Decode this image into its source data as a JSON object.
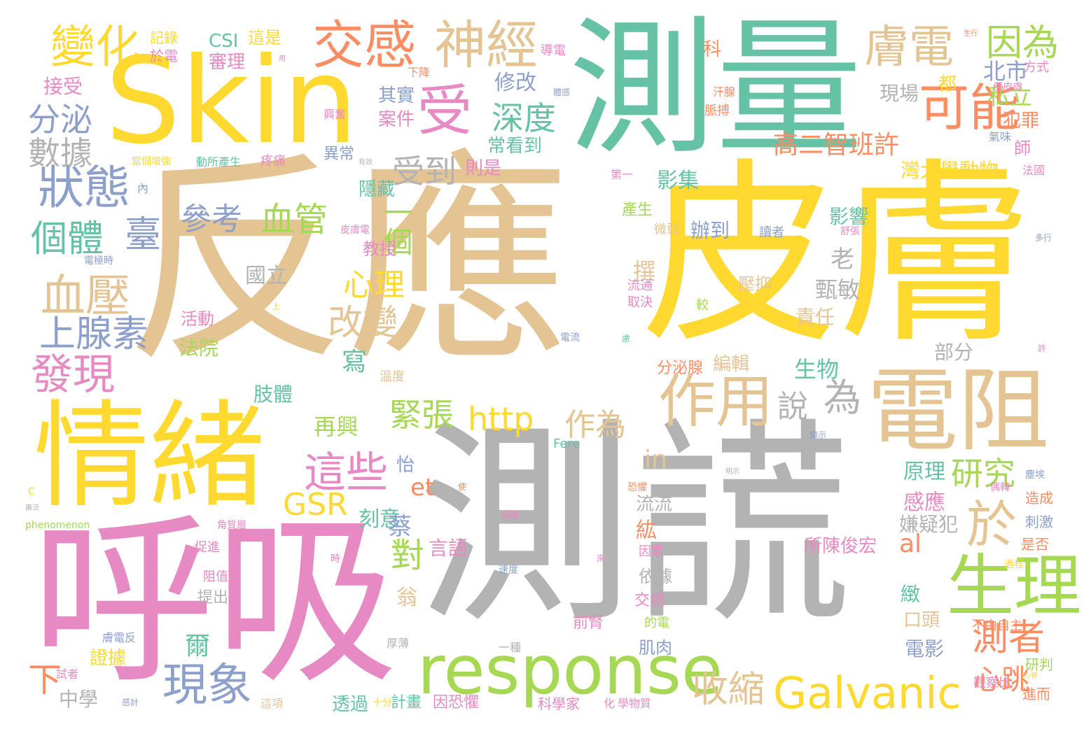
{
  "palette": {
    "teal": "#66c2a5",
    "orange": "#fc8d62",
    "blue": "#8da0cb",
    "pink": "#e78ac3",
    "green": "#a6d854",
    "yellow": "#ffd92f",
    "tan": "#e5c494",
    "gray": "#b3b3b3"
  },
  "words": [
    {
      "text": "反應",
      "color": "tan"
    },
    {
      "text": "測量",
      "color": "teal"
    },
    {
      "text": "皮膚",
      "color": "yellow"
    },
    {
      "text": "測謊",
      "color": "gray"
    },
    {
      "text": "呼吸",
      "color": "pink"
    },
    {
      "text": "Skin",
      "color": "yellow"
    },
    {
      "text": "情緒",
      "color": "yellow"
    },
    {
      "text": "電阻",
      "color": "tan"
    },
    {
      "text": "response",
      "color": "green"
    },
    {
      "text": "生理",
      "color": "green"
    },
    {
      "text": "Galvanic",
      "color": "yellow"
    },
    {
      "text": "作用",
      "color": "tan"
    },
    {
      "text": "交感",
      "color": "orange"
    },
    {
      "text": "神經",
      "color": "tan"
    },
    {
      "text": "變化",
      "color": "yellow"
    },
    {
      "text": "膚電",
      "color": "tan"
    },
    {
      "text": "受",
      "color": "pink"
    },
    {
      "text": "可能",
      "color": "orange"
    },
    {
      "text": "狀態",
      "color": "blue"
    },
    {
      "text": "現象",
      "color": "blue"
    },
    {
      "text": "這些",
      "color": "pink"
    },
    {
      "text": "血壓",
      "color": "tan"
    },
    {
      "text": "上腺素",
      "color": "blue"
    },
    {
      "text": "發現",
      "color": "pink"
    },
    {
      "text": "個體",
      "color": "teal"
    },
    {
      "text": "分泌",
      "color": "blue"
    },
    {
      "text": "數據",
      "color": "gray"
    },
    {
      "text": "因為",
      "color": "green"
    },
    {
      "text": "深度",
      "color": "teal"
    },
    {
      "text": "受到",
      "color": "gray"
    },
    {
      "text": "緊張",
      "color": "green"
    },
    {
      "text": "血管",
      "color": "green"
    },
    {
      "text": "參考",
      "color": "blue"
    },
    {
      "text": "臺",
      "color": "blue"
    },
    {
      "text": "改變",
      "color": "tan"
    },
    {
      "text": "心理",
      "color": "yellow"
    },
    {
      "text": "收縮",
      "color": "tan"
    },
    {
      "text": "測者",
      "color": "orange"
    },
    {
      "text": "於",
      "color": "tan"
    },
    {
      "text": "研究",
      "color": "green"
    },
    {
      "text": "http",
      "color": "yellow"
    },
    {
      "text": "GSR",
      "color": "yellow"
    },
    {
      "text": "作為",
      "color": "tan"
    },
    {
      "text": "說",
      "color": "gray"
    },
    {
      "text": "為",
      "color": "gray"
    },
    {
      "text": "高二智班許",
      "color": "orange"
    },
    {
      "text": "灣大學動物",
      "color": "yellow"
    },
    {
      "text": "北市",
      "color": "blue"
    },
    {
      "text": "私立",
      "color": "green"
    },
    {
      "text": "犯罪",
      "color": "orange"
    },
    {
      "text": "現場",
      "color": "gray"
    },
    {
      "text": "一個",
      "color": "green"
    },
    {
      "text": "影集",
      "color": "teal"
    },
    {
      "text": "辦到",
      "color": "blue"
    },
    {
      "text": "生物",
      "color": "teal"
    },
    {
      "text": "部分",
      "color": "gray"
    },
    {
      "text": "原理",
      "color": "teal"
    },
    {
      "text": "感應",
      "color": "pink"
    },
    {
      "text": "心跳",
      "color": "orange"
    },
    {
      "text": "電影",
      "color": "blue"
    },
    {
      "text": "對",
      "color": "green"
    },
    {
      "text": "et",
      "color": "orange"
    },
    {
      "text": "al",
      "color": "orange"
    },
    {
      "text": "in",
      "color": "tan"
    },
    {
      "text": "修改",
      "color": "blue"
    },
    {
      "text": "其實",
      "color": "blue"
    },
    {
      "text": "案件",
      "color": "pink"
    },
    {
      "text": "常看到",
      "color": "teal"
    },
    {
      "text": "則是",
      "color": "pink"
    },
    {
      "text": "CSI",
      "color": "teal"
    },
    {
      "text": "審理",
      "color": "pink"
    },
    {
      "text": "這是",
      "color": "yellow"
    },
    {
      "text": "記錄",
      "color": "yellow"
    },
    {
      "text": "於電",
      "color": "pink"
    },
    {
      "text": "接受",
      "color": "pink"
    },
    {
      "text": "國立",
      "color": "gray"
    },
    {
      "text": "甄敏",
      "color": "gray"
    },
    {
      "text": "老",
      "color": "gray"
    },
    {
      "text": "撰",
      "color": "tan"
    },
    {
      "text": "影響",
      "color": "teal"
    },
    {
      "text": "責任",
      "color": "tan"
    },
    {
      "text": "壓抑",
      "color": "tan"
    },
    {
      "text": "所陳俊宏",
      "color": "pink"
    },
    {
      "text": "嫌疑犯",
      "color": "gray"
    },
    {
      "text": "中學",
      "color": "gray"
    },
    {
      "text": "下",
      "color": "orange"
    },
    {
      "text": "證據",
      "color": "yellow"
    },
    {
      "text": "爾",
      "color": "teal"
    },
    {
      "text": "透過",
      "color": "teal"
    },
    {
      "text": "言語",
      "color": "pink"
    },
    {
      "text": "刻意",
      "color": "teal"
    },
    {
      "text": "蔡",
      "color": "blue"
    },
    {
      "text": "翁",
      "color": "tan"
    },
    {
      "text": "流流",
      "color": "gray"
    },
    {
      "text": "紘",
      "color": "orange"
    },
    {
      "text": "依據",
      "color": "gray"
    },
    {
      "text": "再興",
      "color": "green"
    },
    {
      "text": "怡",
      "color": "blue"
    },
    {
      "text": "隱藏",
      "color": "teal"
    },
    {
      "text": "教授",
      "color": "pink"
    },
    {
      "text": "寫",
      "color": "teal"
    },
    {
      "text": "編輯",
      "color": "tan"
    },
    {
      "text": "肢體",
      "color": "teal"
    },
    {
      "text": "法院",
      "color": "green"
    },
    {
      "text": "活動",
      "color": "pink"
    },
    {
      "text": "分泌腺",
      "color": "orange"
    },
    {
      "text": "科",
      "color": "orange"
    },
    {
      "text": "都",
      "color": "yellow"
    },
    {
      "text": "師",
      "color": "pink"
    },
    {
      "text": "口頭",
      "color": "tan"
    },
    {
      "text": "緻",
      "color": "teal"
    },
    {
      "text": "不由自主",
      "color": "orange"
    },
    {
      "text": "研判",
      "color": "green"
    },
    {
      "text": "觀察比",
      "color": "pink"
    },
    {
      "text": "造成",
      "color": "orange"
    },
    {
      "text": "刺激",
      "color": "blue"
    },
    {
      "text": "是否",
      "color": "orange"
    },
    {
      "text": "進而",
      "color": "orange"
    },
    {
      "text": "方式",
      "color": "pink"
    },
    {
      "text": "法國",
      "color": "pink"
    },
    {
      "text": "產生",
      "color": "green"
    },
    {
      "text": "肌肉",
      "color": "blue"
    },
    {
      "text": "計畫",
      "color": "teal"
    },
    {
      "text": "因恐懼",
      "color": "pink"
    },
    {
      "text": "前腎",
      "color": "pink"
    },
    {
      "text": "交感",
      "color": "pink"
    },
    {
      "text": "科學家",
      "color": "pink"
    },
    {
      "text": "提出",
      "color": "gray"
    },
    {
      "text": "阻值",
      "color": "pink"
    },
    {
      "text": "促進",
      "color": "pink"
    },
    {
      "text": "Fere",
      "color": "teal"
    },
    {
      "text": "phenomenon",
      "color": "green"
    },
    {
      "text": "異常",
      "color": "blue"
    },
    {
      "text": "興奮",
      "color": "pink"
    },
    {
      "text": "溫度",
      "color": "tan"
    },
    {
      "text": "一種",
      "color": "gray"
    },
    {
      "text": "導電",
      "color": "pink"
    },
    {
      "text": "第一",
      "color": "pink"
    },
    {
      "text": "疼痛",
      "color": "pink"
    },
    {
      "text": "動所產生",
      "color": "teal"
    },
    {
      "text": "當個增強",
      "color": "yellow"
    },
    {
      "text": "試者",
      "color": "pink"
    },
    {
      "text": "膚電反",
      "color": "blue"
    },
    {
      "text": "這項",
      "color": "tan"
    },
    {
      "text": "十分",
      "color": "yellow"
    },
    {
      "text": "微弱",
      "color": "tan"
    },
    {
      "text": "流通",
      "color": "pink"
    },
    {
      "text": "取決",
      "color": "pink"
    },
    {
      "text": "較",
      "color": "green"
    },
    {
      "text": "因素",
      "color": "pink"
    },
    {
      "text": "的電",
      "color": "green"
    },
    {
      "text": "厚薄",
      "color": "gray"
    },
    {
      "text": "下降",
      "color": "orange"
    },
    {
      "text": "汗腺",
      "color": "orange"
    },
    {
      "text": "脈搏",
      "color": "orange"
    },
    {
      "text": "氣味",
      "color": "blue"
    },
    {
      "text": "便皮膚",
      "color": "pink"
    },
    {
      "text": "讀者",
      "color": "blue"
    },
    {
      "text": "舒張",
      "color": "pink"
    },
    {
      "text": "多行",
      "color": "blue"
    },
    {
      "text": "電極時",
      "color": "blue"
    },
    {
      "text": "皮膚電",
      "color": "pink"
    },
    {
      "text": "電流",
      "color": "blue"
    },
    {
      "text": "過程",
      "color": "yellow"
    },
    {
      "text": "慮",
      "color": "teal"
    },
    {
      "text": "恐懼",
      "color": "orange"
    },
    {
      "text": "角質層",
      "color": "pink"
    },
    {
      "text": "時",
      "color": "pink"
    },
    {
      "text": "來",
      "color": "pink"
    },
    {
      "text": "速度",
      "color": "blue"
    },
    {
      "text": "相關",
      "color": "pink"
    },
    {
      "text": "使",
      "color": "orange"
    },
    {
      "text": "C",
      "color": "yellow"
    },
    {
      "text": "廣泛",
      "color": "gray"
    },
    {
      "text": "許",
      "color": "pink"
    },
    {
      "text": "上",
      "color": "yellow"
    },
    {
      "text": "內",
      "color": "blue"
    },
    {
      "text": "化",
      "color": "pink"
    },
    {
      "text": "學物質",
      "color": "pink"
    },
    {
      "text": "感計",
      "color": "blue"
    },
    {
      "text": "心智",
      "color": "yellow"
    },
    {
      "text": "塵埃",
      "color": "blue"
    },
    {
      "text": "偶轉",
      "color": "pink"
    },
    {
      "text": "顯示",
      "color": "blue"
    },
    {
      "text": "明示",
      "color": "gray"
    },
    {
      "text": "用",
      "color": "pink"
    },
    {
      "text": "生行",
      "color": "orange"
    },
    {
      "text": "體感",
      "color": "blue"
    },
    {
      "text": "有效",
      "color": "gray"
    }
  ]
}
